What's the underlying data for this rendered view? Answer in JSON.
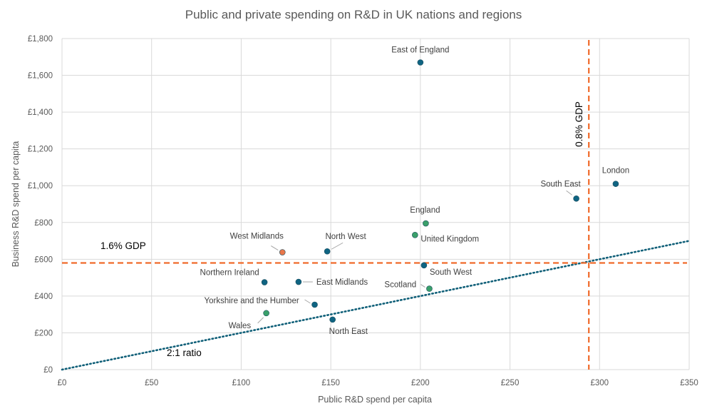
{
  "chart_data": {
    "type": "scatter",
    "title": "Public and private spending on R&D in UK nations and regions",
    "xlabel": "Public R&D spend per capita",
    "ylabel": "Business R&D spend per capita",
    "xlim": [
      0,
      350
    ],
    "ylim": [
      0,
      1800
    ],
    "x_ticks": [
      0,
      50,
      100,
      150,
      200,
      250,
      300,
      350
    ],
    "y_ticks": [
      0,
      200,
      400,
      600,
      800,
      1000,
      1200,
      1400,
      1600,
      1800
    ],
    "x_tick_labels": [
      "£0",
      "£50",
      "£100",
      "£150",
      "£200",
      "£250",
      "£300",
      "£350"
    ],
    "y_tick_labels": [
      "£0",
      "£200",
      "£400",
      "£600",
      "£800",
      "£1,000",
      "£1,200",
      "£1,400",
      "£1,600",
      "£1,800"
    ],
    "grid": true,
    "colors": {
      "english_region": "#0f6482",
      "nation": "#3aa06a",
      "highlight": "#e8774b",
      "reference_line": "#f06a2a",
      "trend_line": "#0f5f78",
      "grid": "#d9d9d9"
    },
    "points": [
      {
        "name": "East of England",
        "x": 200,
        "y": 1670,
        "group": "english_region"
      },
      {
        "name": "London",
        "x": 309,
        "y": 1010,
        "group": "english_region"
      },
      {
        "name": "South East",
        "x": 287,
        "y": 930,
        "group": "english_region"
      },
      {
        "name": "England",
        "x": 203,
        "y": 795,
        "group": "nation"
      },
      {
        "name": "United Kingdom",
        "x": 197,
        "y": 732,
        "group": "nation"
      },
      {
        "name": "West Midlands",
        "x": 123,
        "y": 638,
        "group": "highlight"
      },
      {
        "name": "North West",
        "x": 148,
        "y": 643,
        "group": "english_region"
      },
      {
        "name": "South West",
        "x": 202,
        "y": 567,
        "group": "english_region"
      },
      {
        "name": "Northern Ireland",
        "x": 113,
        "y": 475,
        "group": "english_region"
      },
      {
        "name": "East Midlands",
        "x": 132,
        "y": 477,
        "group": "english_region"
      },
      {
        "name": "Scotland",
        "x": 205,
        "y": 440,
        "group": "nation"
      },
      {
        "name": "Yorkshire and the Humber",
        "x": 141,
        "y": 353,
        "group": "english_region"
      },
      {
        "name": "Wales",
        "x": 114,
        "y": 307,
        "group": "nation"
      },
      {
        "name": "North East",
        "x": 151,
        "y": 272,
        "group": "english_region"
      }
    ],
    "reference_lines": [
      {
        "label": "1.6% GDP",
        "orientation": "horizontal",
        "value": 580
      },
      {
        "label": "0.8% GDP",
        "orientation": "vertical",
        "value": 294
      }
    ],
    "trend_line": {
      "label": "2:1 ratio",
      "from": [
        0,
        0
      ],
      "to": [
        350,
        700
      ]
    }
  }
}
